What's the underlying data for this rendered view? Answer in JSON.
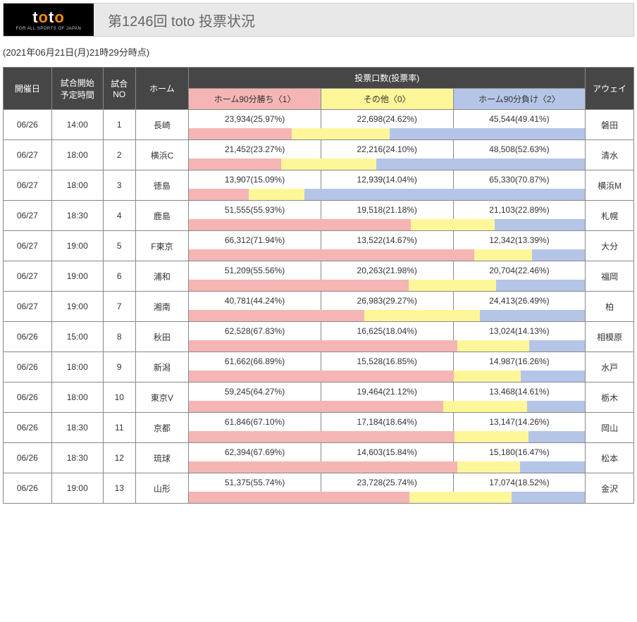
{
  "logo": {
    "text_t": "t",
    "text_o": "o",
    "sub": "FOR ALL SPORTS OF JAPAN"
  },
  "title": "第1246回 toto 投票状況",
  "timestamp": "(2021年06月21日(月)21時29分時点)",
  "table": {
    "headers": {
      "date": "開催日",
      "time": "試合開始\n予定時間",
      "no": "試合\nNO",
      "home": "ホーム",
      "votes": "投票口数(投票率)",
      "win": "ホーム90分勝ち〈1〉",
      "draw": "その他〈0〉",
      "lose": "ホーム90分負け〈2〉",
      "away": "アウェイ"
    },
    "colors": {
      "win": "#f5b5b5",
      "draw": "#fdf79a",
      "lose": "#b5c5e8",
      "header": "#464646"
    },
    "rows": [
      {
        "date": "06/26",
        "time": "14:00",
        "no": "1",
        "home": "長崎",
        "away": "磐田",
        "win_n": "23,934",
        "win_p": 25.97,
        "draw_n": "22,698",
        "draw_p": 24.62,
        "lose_n": "45,544",
        "lose_p": 49.41
      },
      {
        "date": "06/27",
        "time": "18:00",
        "no": "2",
        "home": "横浜C",
        "away": "清水",
        "win_n": "21,452",
        "win_p": 23.27,
        "draw_n": "22,216",
        "draw_p": 24.1,
        "lose_n": "48,508",
        "lose_p": 52.63
      },
      {
        "date": "06/27",
        "time": "18:00",
        "no": "3",
        "home": "徳島",
        "away": "横浜M",
        "win_n": "13,907",
        "win_p": 15.09,
        "draw_n": "12,939",
        "draw_p": 14.04,
        "lose_n": "65,330",
        "lose_p": 70.87
      },
      {
        "date": "06/27",
        "time": "18:30",
        "no": "4",
        "home": "鹿島",
        "away": "札幌",
        "win_n": "51,555",
        "win_p": 55.93,
        "draw_n": "19,518",
        "draw_p": 21.18,
        "lose_n": "21,103",
        "lose_p": 22.89
      },
      {
        "date": "06/27",
        "time": "19:00",
        "no": "5",
        "home": "F東京",
        "away": "大分",
        "win_n": "66,312",
        "win_p": 71.94,
        "draw_n": "13,522",
        "draw_p": 14.67,
        "lose_n": "12,342",
        "lose_p": 13.39
      },
      {
        "date": "06/27",
        "time": "19:00",
        "no": "6",
        "home": "浦和",
        "away": "福岡",
        "win_n": "51,209",
        "win_p": 55.56,
        "draw_n": "20,263",
        "draw_p": 21.98,
        "lose_n": "20,704",
        "lose_p": 22.46
      },
      {
        "date": "06/27",
        "time": "19:00",
        "no": "7",
        "home": "湘南",
        "away": "柏",
        "win_n": "40,781",
        "win_p": 44.24,
        "draw_n": "26,983",
        "draw_p": 29.27,
        "lose_n": "24,413",
        "lose_p": 26.49
      },
      {
        "date": "06/26",
        "time": "15:00",
        "no": "8",
        "home": "秋田",
        "away": "相模原",
        "win_n": "62,528",
        "win_p": 67.83,
        "draw_n": "16,625",
        "draw_p": 18.04,
        "lose_n": "13,024",
        "lose_p": 14.13
      },
      {
        "date": "06/26",
        "time": "18:00",
        "no": "9",
        "home": "新潟",
        "away": "水戸",
        "win_n": "61,662",
        "win_p": 66.89,
        "draw_n": "15,528",
        "draw_p": 16.85,
        "lose_n": "14,987",
        "lose_p": 16.26
      },
      {
        "date": "06/26",
        "time": "18:00",
        "no": "10",
        "home": "東京V",
        "away": "栃木",
        "win_n": "59,245",
        "win_p": 64.27,
        "draw_n": "19,464",
        "draw_p": 21.12,
        "lose_n": "13,468",
        "lose_p": 14.61
      },
      {
        "date": "06/26",
        "time": "18:30",
        "no": "11",
        "home": "京都",
        "away": "岡山",
        "win_n": "61,846",
        "win_p": 67.1,
        "draw_n": "17,184",
        "draw_p": 18.64,
        "lose_n": "13,147",
        "lose_p": 14.26
      },
      {
        "date": "06/26",
        "time": "18:30",
        "no": "12",
        "home": "琉球",
        "away": "松本",
        "win_n": "62,394",
        "win_p": 67.69,
        "draw_n": "14,603",
        "draw_p": 15.84,
        "lose_n": "15,180",
        "lose_p": 16.47
      },
      {
        "date": "06/26",
        "time": "19:00",
        "no": "13",
        "home": "山形",
        "away": "金沢",
        "win_n": "51,375",
        "win_p": 55.74,
        "draw_n": "23,728",
        "draw_p": 25.74,
        "lose_n": "17,074",
        "lose_p": 18.52
      }
    ]
  }
}
